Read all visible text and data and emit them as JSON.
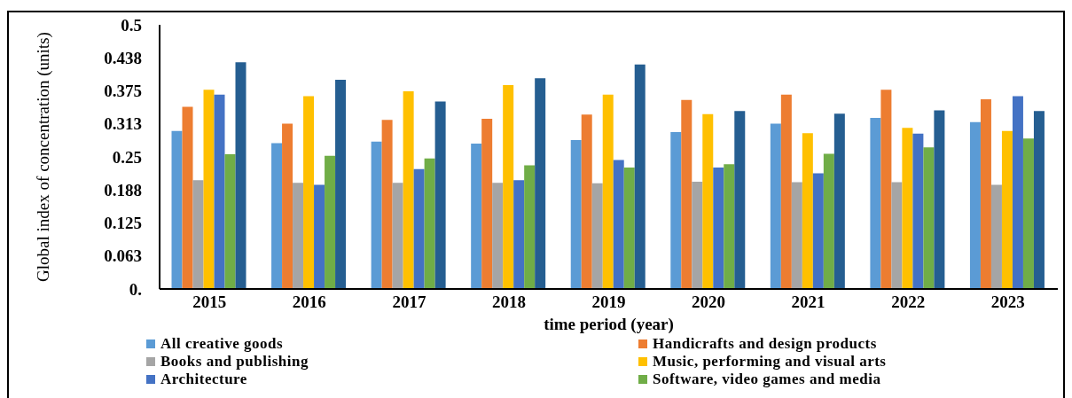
{
  "chart_data": {
    "type": "bar",
    "xlabel": "time period (year)",
    "ylabel": "Global index of concentration (units)",
    "categories": [
      "2015",
      "2016",
      "2017",
      "2018",
      "2019",
      "2020",
      "2021",
      "2022",
      "2023"
    ],
    "series": [
      {
        "name": "All creative goods",
        "color": "#5b9bd5",
        "values": [
          0.299,
          0.276,
          0.279,
          0.275,
          0.282,
          0.297,
          0.313,
          0.324,
          0.316
        ]
      },
      {
        "name": "Handicrafts and design products",
        "color": "#ed7d31",
        "values": [
          0.345,
          0.313,
          0.32,
          0.322,
          0.33,
          0.358,
          0.368,
          0.377,
          0.359
        ]
      },
      {
        "name": "Books and publishing",
        "color": "#a5a5a5",
        "values": [
          0.206,
          0.201,
          0.201,
          0.201,
          0.2,
          0.203,
          0.202,
          0.202,
          0.197
        ]
      },
      {
        "name": "Music, performing and visual arts",
        "color": "#ffc000",
        "values": [
          0.377,
          0.365,
          0.374,
          0.386,
          0.368,
          0.331,
          0.295,
          0.305,
          0.299
        ]
      },
      {
        "name": "Architecture",
        "color": "#4472c4",
        "values": [
          0.368,
          0.197,
          0.227,
          0.206,
          0.244,
          0.23,
          0.219,
          0.294,
          0.365
        ]
      },
      {
        "name": "Software, video games and media",
        "color": "#70ad47",
        "values": [
          0.255,
          0.252,
          0.247,
          0.234,
          0.23,
          0.236,
          0.256,
          0.268,
          0.285
        ]
      },
      {
        "color": "#255e91",
        "values": [
          0.429,
          0.396,
          0.355,
          0.399,
          0.425,
          0.337,
          0.332,
          0.338,
          0.337
        ]
      }
    ],
    "ylim": [
      0,
      0.5
    ],
    "yticks": [
      {
        "value": 0,
        "label": "0."
      },
      {
        "value": 0.0625,
        "label": "0.063"
      },
      {
        "value": 0.125,
        "label": "0.125"
      },
      {
        "value": 0.1875,
        "label": "0.188"
      },
      0.25,
      {
        "value": 0.3125,
        "label": "0.313"
      },
      {
        "value": 0.375,
        "label": "0.375"
      },
      {
        "value": 0.4375,
        "label": "0.438"
      },
      0.5
    ],
    "grid": false,
    "legend": "bottom"
  }
}
